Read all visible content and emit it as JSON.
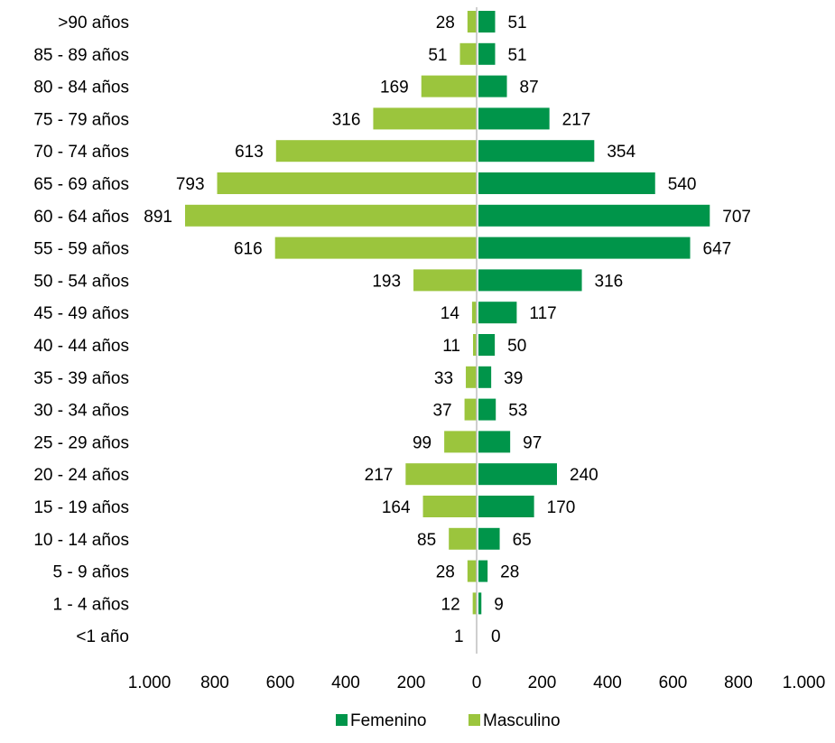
{
  "chart_data": {
    "type": "bar",
    "orientation": "horizontal",
    "categories": [
      ">90 años",
      "85 - 89 años",
      "80 - 84 años",
      "75 - 79 años",
      "70 - 74 años",
      "65 - 69 años",
      "60 - 64 años",
      "55 - 59 años",
      "50 - 54 años",
      "45 - 49 años",
      "40 - 44 años",
      "35 - 39 años",
      "30 - 34 años",
      "25 - 29 años",
      "20 - 24 años",
      "15 - 19 años",
      "10 - 14 años",
      "5 - 9 años",
      "1 - 4 años",
      "<1 año"
    ],
    "series": [
      {
        "name": "Femenino",
        "color": "#00954A",
        "values": [
          51,
          51,
          87,
          217,
          354,
          540,
          707,
          647,
          316,
          117,
          50,
          39,
          53,
          97,
          240,
          170,
          65,
          28,
          9,
          0
        ]
      },
      {
        "name": "Masculino",
        "color": "#9BC53D",
        "values": [
          28,
          51,
          169,
          316,
          613,
          793,
          891,
          616,
          193,
          14,
          11,
          33,
          37,
          99,
          217,
          164,
          85,
          28,
          12,
          1
        ]
      }
    ],
    "xlim": [
      -1000,
      1000
    ],
    "x_ticks": [
      -1000,
      -800,
      -600,
      -400,
      -200,
      0,
      200,
      400,
      600,
      800,
      1000
    ],
    "x_tick_labels": [
      "1.000",
      "800",
      "600",
      "400",
      "200",
      "0",
      "200",
      "400",
      "600",
      "800",
      "1.000"
    ],
    "title": "",
    "xlabel": "",
    "ylabel": "",
    "grid": false,
    "legend_position": "bottom-center",
    "axis_color": "#BFBFBF"
  }
}
